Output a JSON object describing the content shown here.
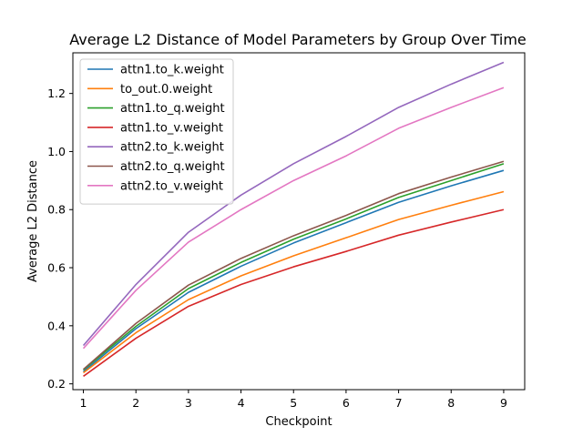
{
  "chart_data": {
    "type": "line",
    "title": "Average L2 Distance of Model Parameters by Group Over Time",
    "xlabel": "Checkpoint",
    "ylabel": "Average L2 Distance",
    "x": [
      1,
      2,
      3,
      4,
      5,
      6,
      7,
      8,
      9
    ],
    "xlim": [
      0.8,
      9.4
    ],
    "ylim": [
      0.18,
      1.34
    ],
    "xticks": [
      1,
      2,
      3,
      4,
      5,
      6,
      7,
      8,
      9
    ],
    "yticks": [
      0.2,
      0.4,
      0.6,
      0.8,
      1.0,
      1.2
    ],
    "ytick_labels": [
      "0.2",
      "0.4",
      "0.6",
      "0.8",
      "1.0",
      "1.2"
    ],
    "grid": false,
    "legend_position": "top-left",
    "series": [
      {
        "name": "attn1.to_k.weight",
        "color": "#1f77b4",
        "values": [
          0.242,
          0.39,
          0.515,
          0.605,
          0.685,
          0.755,
          0.825,
          0.882,
          0.935
        ]
      },
      {
        "name": "to_out.0.weight",
        "color": "#ff7f0e",
        "values": [
          0.238,
          0.376,
          0.49,
          0.572,
          0.641,
          0.703,
          0.766,
          0.815,
          0.862
        ]
      },
      {
        "name": "attn1.to_q.weight",
        "color": "#2ca02c",
        "values": [
          0.248,
          0.398,
          0.528,
          0.618,
          0.698,
          0.768,
          0.842,
          0.9,
          0.958
        ]
      },
      {
        "name": "attn1.to_v.weight",
        "color": "#d62728",
        "values": [
          0.226,
          0.357,
          0.467,
          0.542,
          0.603,
          0.656,
          0.712,
          0.757,
          0.8
        ]
      },
      {
        "name": "attn2.to_k.weight",
        "color": "#9467bd",
        "values": [
          0.332,
          0.542,
          0.722,
          0.85,
          0.958,
          1.052,
          1.152,
          1.232,
          1.307
        ]
      },
      {
        "name": "attn2.to_q.weight",
        "color": "#8c564b",
        "values": [
          0.25,
          0.408,
          0.54,
          0.632,
          0.71,
          0.78,
          0.855,
          0.912,
          0.966
        ]
      },
      {
        "name": "attn2.to_v.weight",
        "color": "#e377c2",
        "values": [
          0.322,
          0.522,
          0.688,
          0.8,
          0.9,
          0.985,
          1.08,
          1.152,
          1.22
        ]
      }
    ]
  }
}
